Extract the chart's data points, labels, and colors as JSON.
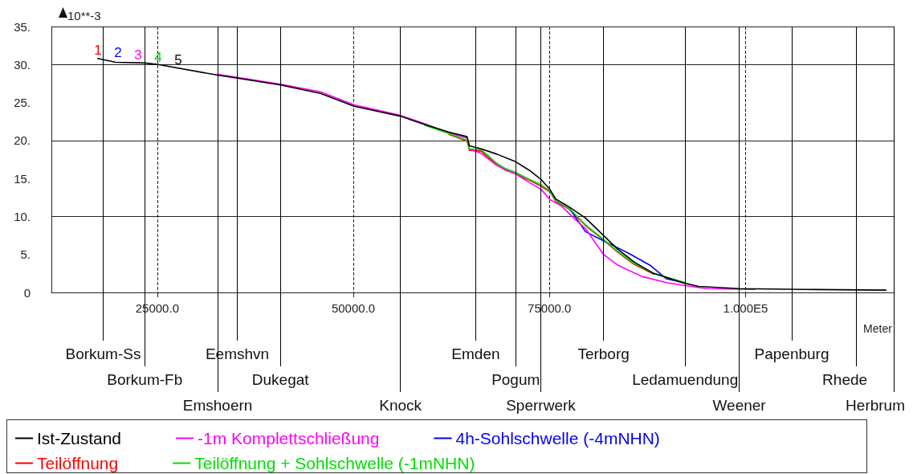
{
  "chart_data": {
    "type": "line",
    "xlabel": "Meter",
    "ylabel": "10**-3",
    "xlim": [
      11500,
      118900
    ],
    "xticks": [
      {
        "value": 25000,
        "label": "25000.0"
      },
      {
        "value": 50000,
        "label": "50000.0"
      },
      {
        "value": 75000,
        "label": "75000.0"
      },
      {
        "value": 100000,
        "label": "1.000E5"
      }
    ],
    "ylim": [
      0,
      35
    ],
    "yticks": [
      0,
      {
        "value": 5,
        "label": "5."
      },
      {
        "value": 10,
        "label": "10."
      },
      {
        "value": 15,
        "label": "15."
      },
      {
        "value": 20,
        "label": "20."
      },
      {
        "value": 25,
        "label": "25."
      },
      {
        "value": 30,
        "label": "30."
      },
      {
        "value": 35,
        "label": "35."
      }
    ],
    "grid": true,
    "legend": "bottom",
    "marker": "none",
    "line_style": "solid",
    "series": [
      {
        "name": "Teilöffnung",
        "color": "#ff0000",
        "x": [
          62200,
          64500,
          64800,
          66300,
          68300,
          69400,
          70700,
          72400,
          73900,
          75100,
          75800,
          77600,
          79600,
          81900,
          83700,
          85800,
          88300
        ],
        "values": [
          20.8,
          19.9,
          18.7,
          18.6,
          16.8,
          16.1,
          15.6,
          14.8,
          14.0,
          13.2,
          12.0,
          10.9,
          8.8,
          6.9,
          5.3,
          3.7,
          2.4
        ]
      },
      {
        "name": "4h-Sohlschwelle (-4mNHN)",
        "color": "#0000ff",
        "x": [
          77600,
          79600,
          81900,
          85000,
          87800,
          89900,
          91200,
          92300
        ],
        "values": [
          11.0,
          8.0,
          6.8,
          5.2,
          3.6,
          1.8,
          1.5,
          1.2
        ]
      },
      {
        "name": "-1m Komplettschließung",
        "color": "#ff00ff",
        "x": [
          32700,
          35200,
          40700,
          45800,
          50100,
          56000,
          59100,
          62200,
          64500,
          64800,
          66300,
          68300,
          70700,
          72400,
          73900,
          75100,
          76500,
          78100,
          79600,
          81900,
          83700,
          86800,
          89900,
          92300,
          95000,
          101200
        ],
        "values": [
          28.7,
          28.3,
          27.4,
          26.4,
          24.7,
          23.3,
          22.2,
          21.0,
          20.3,
          18.9,
          18.3,
          16.7,
          15.6,
          14.5,
          13.6,
          12.2,
          11.4,
          9.8,
          8.4,
          5.0,
          3.6,
          2.1,
          1.3,
          0.9,
          0.5,
          0.4
        ]
      },
      {
        "name": "Teilöffnung + Sohlschwelle (-1mNHN)",
        "color": "#00dd00",
        "x": [
          59100,
          62200,
          64500,
          64800,
          66300,
          68300,
          69400,
          70700,
          72400,
          73900,
          75100,
          75800,
          77600,
          79600,
          81900,
          83700,
          85800,
          88300,
          92300
        ],
        "values": [
          22.0,
          20.9,
          20.0,
          18.9,
          18.8,
          17.0,
          16.3,
          15.8,
          14.9,
          14.2,
          13.3,
          12.1,
          11.0,
          8.9,
          7.0,
          5.4,
          3.8,
          2.5,
          1.3
        ]
      },
      {
        "name": "Ist-Zustand",
        "color": "#000000",
        "x": [
          17400,
          19700,
          23400,
          25100,
          32700,
          35200,
          40700,
          45800,
          50100,
          56000,
          59100,
          62200,
          64500,
          64800,
          66300,
          68300,
          70700,
          72400,
          73900,
          75100,
          75800,
          77600,
          79600,
          81900,
          83700,
          85800,
          88300,
          92300,
          94000,
          99200,
          107300,
          117900
        ],
        "values": [
          30.8,
          30.3,
          30.2,
          30.0,
          28.6,
          28.2,
          27.3,
          26.2,
          24.5,
          23.2,
          22.1,
          21.1,
          20.5,
          19.3,
          18.9,
          18.2,
          17.2,
          16.1,
          14.9,
          13.5,
          12.3,
          11.2,
          9.8,
          7.5,
          5.7,
          4.0,
          2.5,
          1.2,
          0.8,
          0.5,
          0.4,
          0.3
        ]
      }
    ],
    "annotations": [
      "1",
      "2",
      "3",
      "4",
      "5"
    ],
    "ref_lines": [
      {
        "axis": "x",
        "value": 18100,
        "label": "Borkum-Ss",
        "color": "#000000",
        "line_style": "solid"
      },
      {
        "axis": "x",
        "value": 23400,
        "label": "Borkum-Fb",
        "color": "#000000",
        "line_style": "solid"
      },
      {
        "axis": "x",
        "value": 32700,
        "label": "Emshoern",
        "color": "#000000",
        "line_style": "solid"
      },
      {
        "axis": "x",
        "value": 35200,
        "label": "Eemshvn",
        "color": "#000000",
        "line_style": "solid"
      },
      {
        "axis": "x",
        "value": 40700,
        "label": "Dukegat",
        "color": "#000000",
        "line_style": "solid"
      },
      {
        "axis": "x",
        "value": 56000,
        "label": "Knock",
        "color": "#000000",
        "line_style": "solid"
      },
      {
        "axis": "x",
        "value": 65600,
        "label": "Emden",
        "color": "#000000",
        "line_style": "solid"
      },
      {
        "axis": "x",
        "value": 70700,
        "label": "Pogum",
        "color": "#000000",
        "line_style": "solid"
      },
      {
        "axis": "x",
        "value": 73900,
        "label": "Sperrwerk",
        "color": "#000000",
        "line_style": "solid"
      },
      {
        "axis": "x",
        "value": 81900,
        "label": "Terborg",
        "color": "#000000",
        "line_style": "solid"
      },
      {
        "axis": "x",
        "value": 92300,
        "label": "Ledamuendung",
        "color": "#000000",
        "line_style": "solid"
      },
      {
        "axis": "x",
        "value": 99200,
        "label": "Weener",
        "color": "#000000",
        "line_style": "solid"
      },
      {
        "axis": "x",
        "value": 105900,
        "label": "Papenburg",
        "color": "#000000",
        "line_style": "solid"
      },
      {
        "axis": "x",
        "value": 114100,
        "label": "Rhede",
        "color": "#000000",
        "line_style": "solid"
      },
      {
        "axis": "x",
        "value": 118900,
        "label": "Herbrum",
        "color": "#000000",
        "line_style": "solid"
      }
    ]
  }
}
